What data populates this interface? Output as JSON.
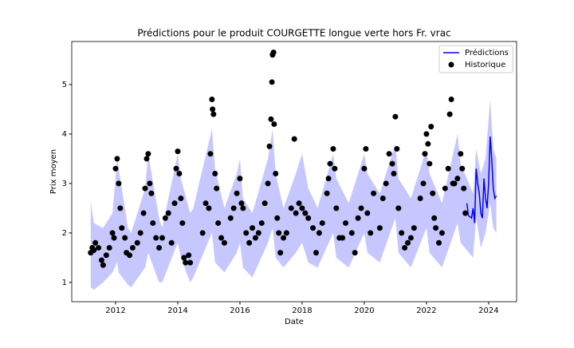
{
  "chart_data": {
    "type": "line",
    "title": "Prédictions pour le produit COURGETTE longue verte hors Fr. vrac",
    "x_label": "Date",
    "y_label": "Prix moyen",
    "xlim": [
      2010.59,
      2024.9
    ],
    "ylim": [
      0.61,
      5.87
    ],
    "xticks": [
      2012,
      2014,
      2016,
      2018,
      2020,
      2022,
      2024
    ],
    "yticks": [
      1,
      2,
      3,
      4,
      5
    ],
    "legend": "upper right",
    "band": {
      "color": "#0000ff",
      "x": [
        2011.2,
        2011.3,
        2011.6,
        2011.9,
        2012.05,
        2012.1,
        2012.4,
        2012.5,
        2012.95,
        2013.05,
        2013.4,
        2013.5,
        2014.0,
        2014.1,
        2014.4,
        2014.5,
        2015.1,
        2015.2,
        2015.5,
        2015.9,
        2016.0,
        2016.1,
        2016.4,
        2016.9,
        2017.05,
        2017.15,
        2017.4,
        2017.8,
        2018.0,
        2018.2,
        2018.5,
        2019.0,
        2019.1,
        2019.5,
        2020.0,
        2020.1,
        2020.5,
        2021.0,
        2021.1,
        2021.5,
        2022.0,
        2022.1,
        2022.5,
        2023.0,
        2023.1,
        2023.5,
        2023.6,
        2023.75,
        2023.9,
        2024.05,
        2024.15,
        2024.25
      ],
      "lower": [
        0.9,
        0.85,
        1.0,
        1.2,
        1.4,
        1.2,
        0.95,
        0.9,
        1.3,
        1.6,
        1.0,
        1.0,
        1.8,
        1.5,
        1.0,
        1.1,
        2.0,
        1.4,
        1.2,
        1.6,
        1.8,
        1.3,
        1.1,
        1.8,
        2.1,
        1.5,
        1.3,
        1.6,
        1.8,
        1.4,
        1.3,
        2.0,
        1.5,
        1.3,
        2.0,
        1.6,
        1.4,
        2.3,
        1.6,
        1.3,
        2.1,
        1.6,
        1.3,
        2.2,
        1.8,
        1.5,
        2.3,
        1.7,
        2.0,
        2.6,
        2.1,
        2.0
      ],
      "upper": [
        2.65,
        2.2,
        2.1,
        2.4,
        3.5,
        3.3,
        2.1,
        2.0,
        2.9,
        3.6,
        2.3,
        2.1,
        3.6,
        3.1,
        2.4,
        2.5,
        4.1,
        3.3,
        2.5,
        3.2,
        3.5,
        2.7,
        2.4,
        3.5,
        4.1,
        3.2,
        2.5,
        3.2,
        3.6,
        2.9,
        2.5,
        3.6,
        3.1,
        2.6,
        3.6,
        3.2,
        2.8,
        3.8,
        3.1,
        2.7,
        3.7,
        3.2,
        2.6,
        4.0,
        3.4,
        2.8,
        3.7,
        3.2,
        3.5,
        4.7,
        3.7,
        3.5
      ]
    },
    "series": [
      {
        "name": "Prédictions",
        "type": "line",
        "color": "#0000ff",
        "x": [
          2023.3,
          2023.35,
          2023.45,
          2023.5,
          2023.55,
          2023.6,
          2023.65,
          2023.7,
          2023.75,
          2023.8,
          2023.85,
          2023.9,
          2023.95,
          2024.0,
          2024.05,
          2024.1,
          2024.15,
          2024.2,
          2024.25
        ],
        "values": [
          2.6,
          2.35,
          2.3,
          2.5,
          2.2,
          3.3,
          3.0,
          2.8,
          2.4,
          2.3,
          3.1,
          2.7,
          2.5,
          3.0,
          3.95,
          3.5,
          2.9,
          2.7,
          2.75
        ]
      },
      {
        "name": "Historique",
        "type": "scatter",
        "color": "#000000",
        "x": [
          2011.2,
          2011.25,
          2011.3,
          2011.35,
          2011.45,
          2011.55,
          2011.6,
          2011.7,
          2011.8,
          2011.9,
          2011.95,
          2012.0,
          2012.05,
          2012.1,
          2012.15,
          2012.2,
          2012.3,
          2012.35,
          2012.45,
          2012.55,
          2012.7,
          2012.8,
          2012.9,
          2012.95,
          2013.0,
          2013.05,
          2013.1,
          2013.15,
          2013.2,
          2013.3,
          2013.4,
          2013.5,
          2013.6,
          2013.7,
          2013.8,
          2013.9,
          2013.95,
          2014.0,
          2014.05,
          2014.1,
          2014.15,
          2014.2,
          2014.25,
          2014.35,
          2014.4,
          2014.8,
          2014.9,
          2015.0,
          2015.05,
          2015.1,
          2015.12,
          2015.15,
          2015.2,
          2015.25,
          2015.3,
          2015.4,
          2015.5,
          2015.7,
          2015.8,
          2015.9,
          2016.0,
          2016.05,
          2016.1,
          2016.2,
          2016.3,
          2016.4,
          2016.5,
          2016.6,
          2016.7,
          2016.8,
          2016.9,
          2016.95,
          2017.0,
          2017.03,
          2017.05,
          2017.08,
          2017.1,
          2017.15,
          2017.2,
          2017.25,
          2017.3,
          2017.4,
          2017.5,
          2017.65,
          2017.75,
          2017.8,
          2017.9,
          2018.0,
          2018.1,
          2018.2,
          2018.35,
          2018.45,
          2018.55,
          2018.65,
          2018.8,
          2018.85,
          2018.9,
          2019.0,
          2019.05,
          2019.1,
          2019.2,
          2019.3,
          2019.4,
          2019.6,
          2019.7,
          2019.8,
          2019.9,
          2020.0,
          2020.05,
          2020.1,
          2020.2,
          2020.3,
          2020.5,
          2020.6,
          2020.7,
          2020.8,
          2020.9,
          2020.95,
          2021.0,
          2021.05,
          2021.1,
          2021.2,
          2021.3,
          2021.4,
          2021.5,
          2021.6,
          2021.8,
          2021.9,
          2021.95,
          2022.0,
          2022.05,
          2022.1,
          2022.15,
          2022.2,
          2022.25,
          2022.3,
          2022.4,
          2022.5,
          2022.6,
          2022.7,
          2022.75,
          2022.8,
          2022.85,
          2022.9,
          2023.0,
          2023.1,
          2023.15,
          2023.2,
          2023.25
        ],
        "values": [
          1.6,
          1.7,
          1.65,
          1.8,
          1.7,
          1.45,
          1.35,
          1.55,
          1.7,
          2.0,
          1.9,
          3.3,
          3.5,
          3.0,
          2.5,
          2.1,
          1.9,
          1.6,
          1.55,
          1.7,
          1.8,
          2.0,
          2.4,
          2.9,
          3.5,
          3.6,
          3.0,
          2.8,
          2.2,
          1.9,
          1.7,
          1.9,
          2.3,
          2.4,
          1.8,
          2.6,
          3.3,
          3.65,
          3.2,
          2.7,
          2.2,
          1.5,
          1.4,
          1.55,
          1.4,
          2.0,
          2.6,
          2.5,
          3.6,
          4.7,
          4.5,
          4.4,
          3.2,
          2.9,
          2.2,
          1.9,
          1.8,
          2.3,
          2.5,
          2.8,
          3.1,
          2.6,
          2.5,
          2.0,
          1.8,
          2.1,
          1.9,
          2.0,
          2.2,
          2.6,
          3.0,
          3.75,
          4.3,
          5.05,
          5.6,
          5.65,
          4.2,
          3.2,
          2.3,
          2.0,
          1.6,
          1.9,
          2.0,
          2.5,
          3.9,
          2.4,
          2.6,
          2.5,
          2.4,
          2.3,
          2.1,
          1.6,
          2.0,
          2.2,
          2.8,
          3.1,
          3.4,
          3.7,
          3.3,
          2.5,
          1.9,
          1.9,
          2.2,
          2.0,
          1.6,
          2.3,
          2.5,
          3.3,
          3.7,
          2.4,
          2.0,
          2.8,
          2.1,
          2.7,
          3.0,
          3.6,
          3.4,
          3.2,
          4.35,
          3.7,
          2.5,
          2.0,
          1.7,
          1.8,
          1.9,
          2.1,
          2.7,
          3.0,
          3.6,
          4.0,
          3.8,
          3.4,
          4.15,
          2.8,
          2.3,
          2.1,
          1.8,
          2.0,
          2.9,
          3.3,
          4.4,
          4.7,
          3.0,
          3.0,
          3.1,
          3.6,
          3.3,
          2.9,
          2.4
        ]
      }
    ]
  }
}
